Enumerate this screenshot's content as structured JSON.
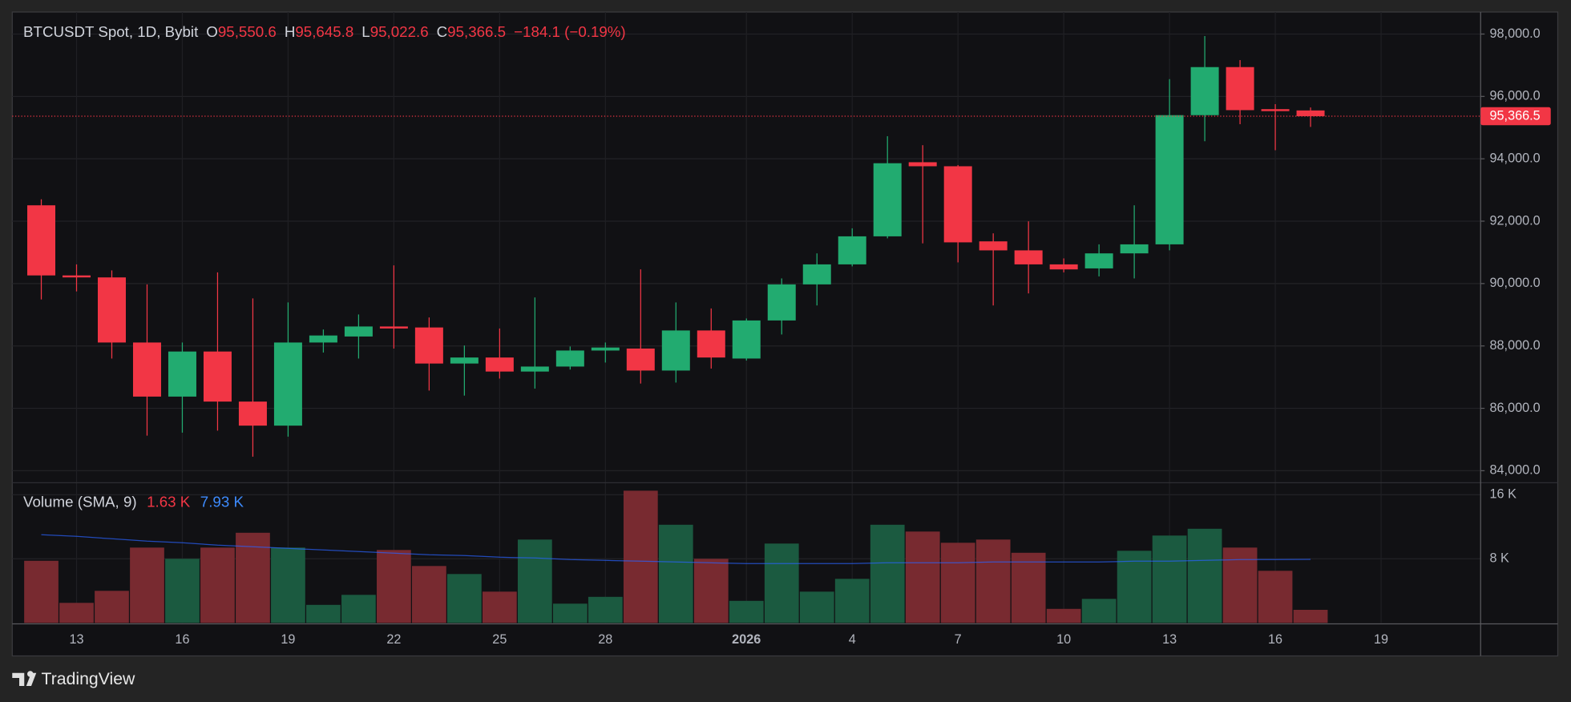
{
  "branding": "TradingView",
  "chart_data": [
    {
      "type": "candlestick",
      "title": "BTCUSDT Spot, 1D, Bybit",
      "ohlc_header": [
        {
          "key": "O",
          "value": "95,550.6"
        },
        {
          "key": "H",
          "value": "95,645.8"
        },
        {
          "key": "L",
          "value": "95,022.6"
        },
        {
          "key": "C",
          "value": "95,366.5"
        }
      ],
      "change": "−184.1 (−0.19%)",
      "categories": [
        null,
        "13",
        null,
        null,
        "16",
        null,
        null,
        "19",
        null,
        null,
        "22",
        null,
        null,
        "25",
        null,
        null,
        "28",
        null,
        null,
        null,
        "2026",
        null,
        null,
        "4",
        null,
        null,
        "7",
        null,
        null,
        "10",
        null,
        null,
        "13",
        null,
        null,
        "16",
        null,
        null,
        "19",
        null,
        null
      ],
      "open": [
        92509,
        90261,
        90197,
        88110,
        86376,
        87821,
        86216,
        85445,
        88110,
        88303,
        88624,
        88592,
        87436,
        87629,
        87179,
        87339,
        87853,
        87917,
        87211,
        88496,
        87596,
        88817,
        89973,
        90615,
        91514,
        93890,
        93761,
        91353,
        91064,
        90615,
        90486,
        90968,
        91257,
        95399,
        96940,
        95592,
        95550.6,
        null,
        null,
        null,
        null
      ],
      "high": [
        92702,
        90615,
        90422,
        89973,
        88110,
        90358,
        89523,
        89395,
        88528,
        89009,
        90583,
        88913,
        88014,
        88560,
        89555,
        87982,
        88110,
        90454,
        89395,
        89202,
        88881,
        90165,
        90968,
        91771,
        94725,
        94436,
        93800,
        91610,
        91995,
        90807,
        91257,
        92509,
        96555,
        97936,
        97165,
        95752,
        95645.8,
        null,
        null,
        null,
        null
      ],
      "low": [
        89491,
        89748,
        87596,
        85124,
        85220,
        85284,
        84450,
        85092,
        87789,
        87596,
        87917,
        86569,
        86408,
        86954,
        86633,
        87243,
        87468,
        86794,
        86826,
        87275,
        87532,
        88367,
        89298,
        90551,
        91450,
        91289,
        90679,
        89298,
        89684,
        90358,
        90229,
        90165,
        91064,
        94564,
        95110,
        94275,
        95022.6,
        null,
        null,
        null,
        null
      ],
      "close": [
        90261,
        90197,
        88110,
        86376,
        87821,
        86216,
        85445,
        88110,
        88335,
        88624,
        88560,
        87436,
        87629,
        87179,
        87339,
        87853,
        87949,
        87211,
        88496,
        87629,
        88817,
        89973,
        90615,
        91514,
        93858,
        93761,
        91321,
        91064,
        90615,
        90454,
        90968,
        91257,
        95399,
        96940,
        95560,
        95528,
        95366.5,
        null,
        null,
        null,
        null
      ],
      "up_color": "#22ab70",
      "down_color": "#f23645",
      "last_price": {
        "value": 95366.5,
        "label": "95,366.5"
      },
      "ylim": [
        83680,
        98706
      ],
      "yticks": [
        {
          "value": 84000,
          "label": "84,000.0"
        },
        {
          "value": 86000,
          "label": "86,000.0"
        },
        {
          "value": 88000,
          "label": "88,000.0"
        },
        {
          "value": 90000,
          "label": "90,000.0"
        },
        {
          "value": 92000,
          "label": "92,000.0"
        },
        {
          "value": 94000,
          "label": "94,000.0"
        },
        {
          "value": 96000,
          "label": "96,000.0"
        },
        {
          "value": 98000,
          "label": "98,000.0"
        }
      ],
      "grid": true
    },
    {
      "type": "bar",
      "title": "Volume (SMA, 9)",
      "series": [
        {
          "color": "#f23645",
          "last_label": "1.63 K",
          "values": [
            7.75,
            2.5,
            4.0,
            9.4,
            8.0,
            9.4,
            11.25,
            9.4,
            2.25,
            3.5,
            9.1,
            7.1,
            6.1,
            3.9,
            10.4,
            2.4,
            3.25,
            16.5,
            12.25,
            8.0,
            2.75,
            9.9,
            3.9,
            5.5,
            12.25,
            11.4,
            10.0,
            10.4,
            8.75,
            1.75,
            3.0,
            9.0,
            10.9,
            11.75,
            9.4,
            6.5,
            1.63,
            null,
            null,
            null,
            null
          ]
        },
        {
          "color": "#2962ff",
          "last_label": "7.93 K",
          "values": [
            11.0,
            10.8,
            10.5,
            10.2,
            10.0,
            9.7,
            9.5,
            9.3,
            9.1,
            8.9,
            8.7,
            8.5,
            8.4,
            8.2,
            8.1,
            7.9,
            7.8,
            7.7,
            7.6,
            7.5,
            7.4,
            7.4,
            7.4,
            7.4,
            7.5,
            7.5,
            7.5,
            7.6,
            7.6,
            7.6,
            7.6,
            7.7,
            7.7,
            7.8,
            7.9,
            7.9,
            7.93,
            null,
            null,
            null,
            null
          ]
        }
      ],
      "ylim": [
        0,
        17.25
      ],
      "yticks": [
        {
          "value": 8,
          "label": "8 K"
        },
        {
          "value": 16,
          "label": "16 K"
        }
      ]
    }
  ]
}
